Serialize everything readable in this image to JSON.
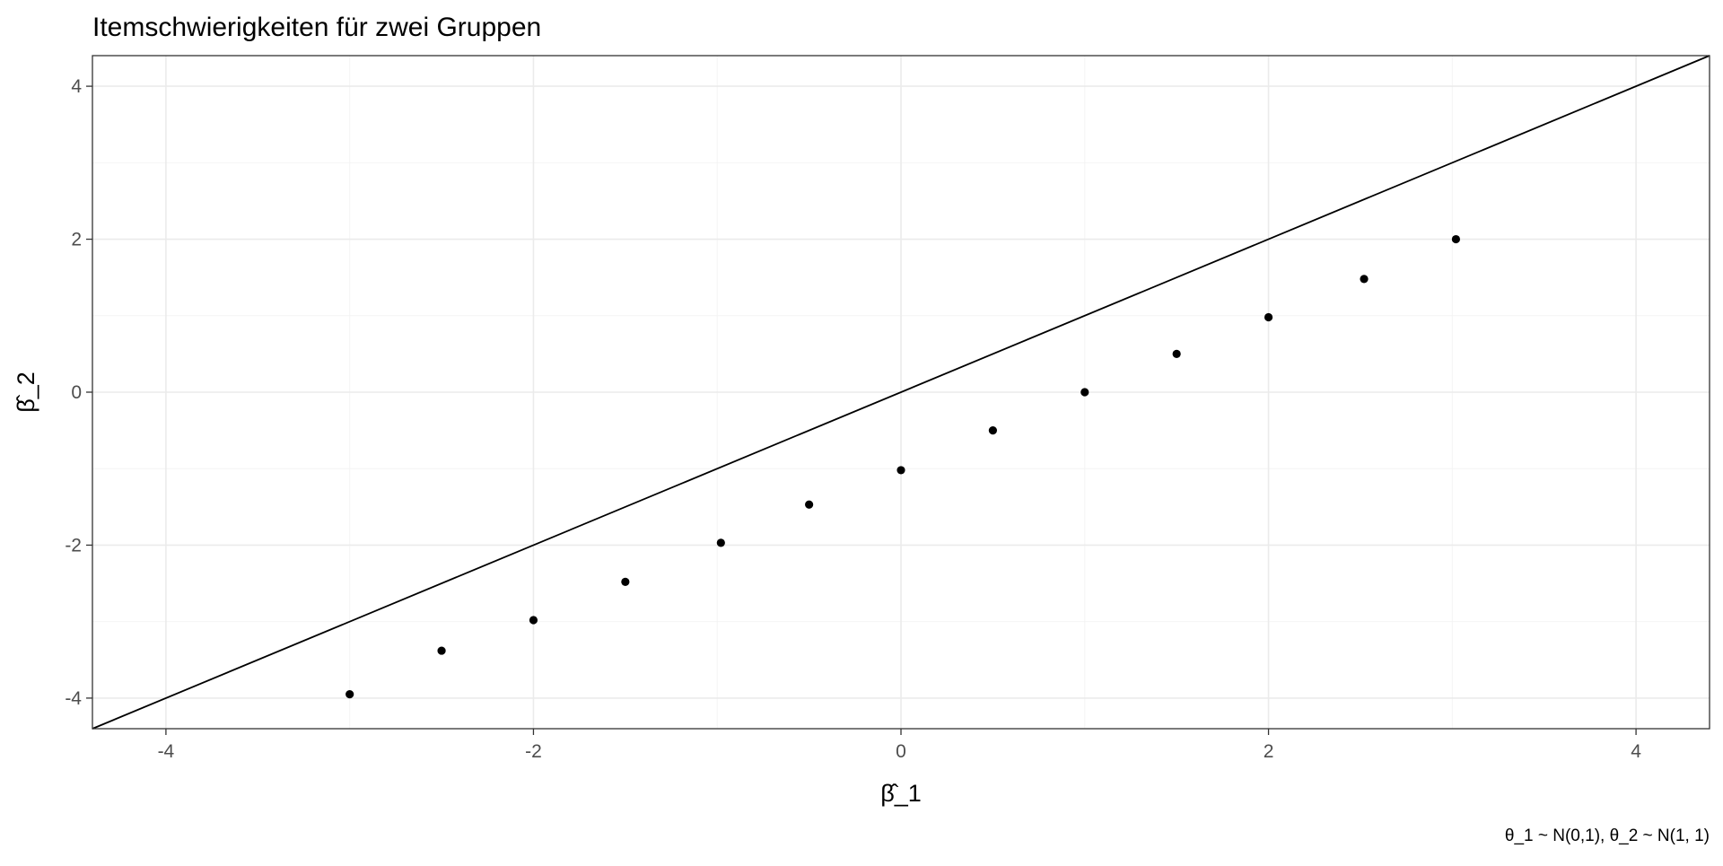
{
  "chart_data": {
    "type": "scatter",
    "title": "Itemschwierigkeiten für zwei Gruppen",
    "xlabel": "β̂_1",
    "ylabel": "β̂_2",
    "caption": "θ_1 ~ N(0,1), θ_2 ~ N(1, 1)",
    "xlim": [
      -4.4,
      4.4
    ],
    "ylim": [
      -4.4,
      4.4
    ],
    "x_ticks": [
      -4,
      -2,
      0,
      2,
      4
    ],
    "y_ticks": [
      -4,
      -2,
      0,
      2,
      4
    ],
    "x_tick_labels": [
      "-4",
      "-2",
      "0",
      "2",
      "4"
    ],
    "y_tick_labels": [
      "-4",
      "-2",
      "0",
      "2",
      "4"
    ],
    "grid": true,
    "reference_line": {
      "slope": 1,
      "intercept": 0
    },
    "points": {
      "x": [
        -3.0,
        -2.5,
        -2.0,
        -1.5,
        -0.98,
        -0.5,
        0.0,
        0.5,
        1.0,
        1.5,
        2.0,
        2.52,
        3.02
      ],
      "y": [
        -3.95,
        -3.38,
        -2.98,
        -2.48,
        -1.97,
        -1.47,
        -1.02,
        -0.5,
        0.0,
        0.5,
        0.98,
        1.48,
        2.0
      ]
    },
    "colors": {
      "points": "#000000",
      "line": "#000000",
      "grid": "#ebebeb",
      "border": "#333333"
    }
  }
}
